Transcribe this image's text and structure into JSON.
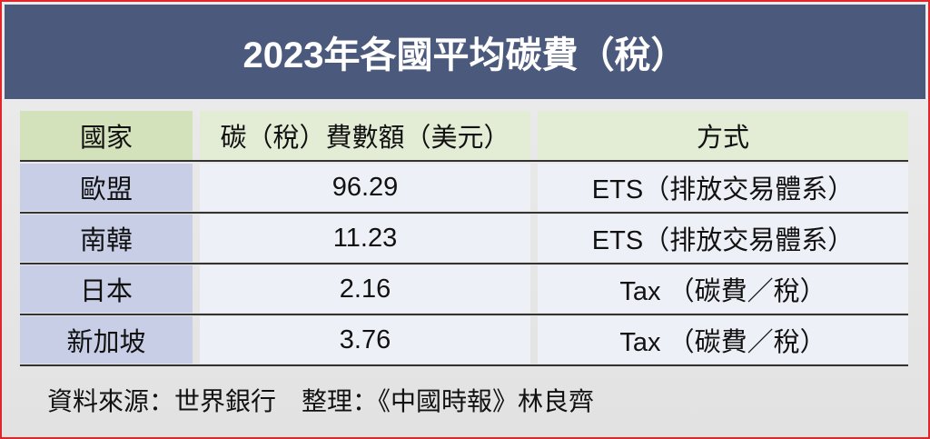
{
  "header": {
    "title": "2023年各國平均碳費（稅）"
  },
  "table": {
    "headers": [
      "國家",
      "碳（稅）費數額（美元）",
      "方式"
    ],
    "rows": [
      [
        "歐盟",
        96.29,
        "ETS（排放交易體系）"
      ],
      [
        "南韓",
        11.23,
        "ETS（排放交易體系）"
      ],
      [
        "日本",
        2.16,
        "Tax （碳費／稅）"
      ],
      [
        "新加坡",
        3.76,
        "Tax （碳費／稅）"
      ]
    ]
  },
  "footer": "資料來源：世界銀行　整理：《中國時報》林良齊"
}
